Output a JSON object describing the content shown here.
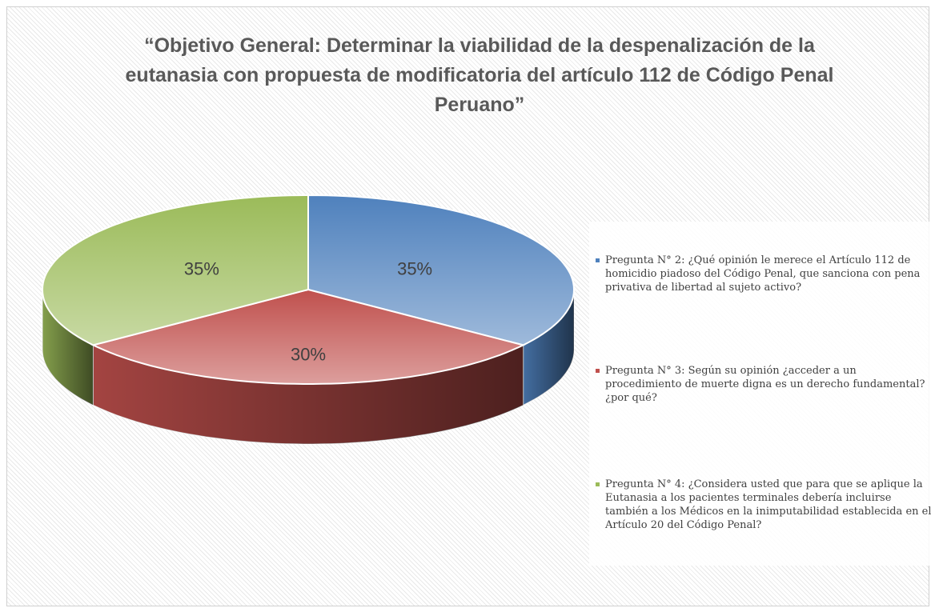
{
  "chart_data": {
    "type": "pie",
    "title": "“Objetivo General: Determinar la viabilidad de la despenalización de la eutanasia con propuesta de modificatoria del artículo 112 de Código Penal Peruano”",
    "categories": [
      "Pregunta N° 2: ¿Qué opinión le merece el Artículo 112 de homicidio piadoso del Código Penal, que sanciona con pena privativa de libertad al sujeto activo?",
      "Pregunta N° 3: Según su opinión ¿acceder a un procedimiento de muerte digna es un derecho fundamental? ¿por qué?",
      "Pregunta N° 4: ¿Considera usted que para que se aplique la Eutanasia a los pacientes terminales debería incluirse también a los Médicos en la inimputabilidad establecida en el Artículo 20 del Código Penal?"
    ],
    "values": [
      35,
      30,
      35
    ],
    "value_labels": [
      "35%",
      "30%",
      "35%"
    ],
    "colors": [
      "#4f81bd",
      "#c0504d",
      "#9bbb59"
    ],
    "legend": "right"
  }
}
